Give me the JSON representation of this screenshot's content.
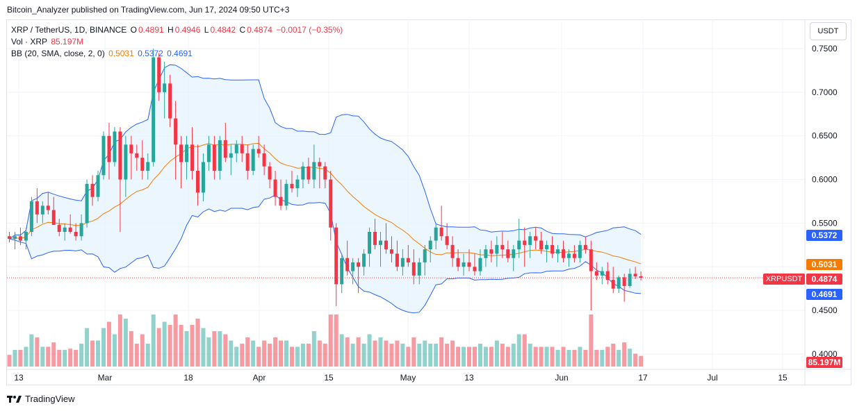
{
  "header": {
    "publisher_line": "Bitcoin_Analyzer published on TradingView.com, Jun 17, 2024 09:50 UTC+3"
  },
  "legend": {
    "symbol": "XRP / TetherUS, 1D, BINANCE",
    "open_label": "O",
    "open": "0.4891",
    "high_label": "H",
    "high": "0.4946",
    "low_label": "L",
    "low": "0.4842",
    "close_label": "C",
    "close": "0.4874",
    "change": "−0.0017 (−0.35%)",
    "vol_label": "Vol · XRP",
    "vol_value": "85.197M",
    "bb_label": "BB (20, SMA, close, 2, 0)",
    "bb_mid": "0.5031",
    "bb_upper": "0.5372",
    "bb_lower": "0.4691"
  },
  "currency_button": "USDT",
  "symbol_tag": "XRPUSDT",
  "price_labels": {
    "upper": "0.5372",
    "mid": "0.5031",
    "last": "0.4874",
    "lower": "0.4691",
    "volume": "85.197M"
  },
  "footer": {
    "brand": "TradingView"
  },
  "colors": {
    "up": "#26a69a",
    "down": "#f23645",
    "band": "#2962ff",
    "basis": "#f57c00",
    "band_fill": "#e3f2fd"
  },
  "chart_data": {
    "type": "candlestick",
    "price_axis": {
      "ticks": [
        "0.7500",
        "0.7000",
        "0.6500",
        "0.6000",
        "0.5500",
        "0.5000",
        "0.4500",
        "0.4000"
      ],
      "range": [
        0.395,
        0.77
      ]
    },
    "time_axis": {
      "labels": [
        "13",
        "Mar",
        "18",
        "Apr",
        "15",
        "May",
        "13",
        "Jun",
        "17",
        "Jul",
        "15"
      ]
    },
    "candles": [
      [
        0.535,
        0.54,
        0.528,
        0.532
      ],
      [
        0.532,
        0.54,
        0.52,
        0.535
      ],
      [
        0.535,
        0.545,
        0.525,
        0.53
      ],
      [
        0.53,
        0.545,
        0.52,
        0.54
      ],
      [
        0.54,
        0.58,
        0.535,
        0.575
      ],
      [
        0.575,
        0.59,
        0.55,
        0.56
      ],
      [
        0.56,
        0.575,
        0.55,
        0.57
      ],
      [
        0.57,
        0.585,
        0.56,
        0.565
      ],
      [
        0.565,
        0.58,
        0.548,
        0.548
      ],
      [
        0.548,
        0.555,
        0.535,
        0.54
      ],
      [
        0.54,
        0.55,
        0.53,
        0.545
      ],
      [
        0.545,
        0.56,
        0.538,
        0.54
      ],
      [
        0.54,
        0.55,
        0.53,
        0.535
      ],
      [
        0.535,
        0.56,
        0.53,
        0.55
      ],
      [
        0.55,
        0.6,
        0.545,
        0.595
      ],
      [
        0.595,
        0.605,
        0.57,
        0.58
      ],
      [
        0.58,
        0.61,
        0.575,
        0.605
      ],
      [
        0.605,
        0.655,
        0.6,
        0.65
      ],
      [
        0.65,
        0.665,
        0.6,
        0.62
      ],
      [
        0.62,
        0.66,
        0.615,
        0.655
      ],
      [
        0.655,
        0.66,
        0.54,
        0.6
      ],
      [
        0.6,
        0.65,
        0.58,
        0.64
      ],
      [
        0.64,
        0.65,
        0.6,
        0.63
      ],
      [
        0.63,
        0.64,
        0.61,
        0.625
      ],
      [
        0.625,
        0.645,
        0.6,
        0.61
      ],
      [
        0.61,
        0.63,
        0.6,
        0.62
      ],
      [
        0.62,
        0.75,
        0.615,
        0.74
      ],
      [
        0.74,
        0.745,
        0.69,
        0.7
      ],
      [
        0.7,
        0.735,
        0.67,
        0.71
      ],
      [
        0.71,
        0.72,
        0.66,
        0.67
      ],
      [
        0.67,
        0.69,
        0.6,
        0.64
      ],
      [
        0.64,
        0.65,
        0.59,
        0.62
      ],
      [
        0.62,
        0.65,
        0.6,
        0.64
      ],
      [
        0.64,
        0.66,
        0.6,
        0.61
      ],
      [
        0.61,
        0.64,
        0.57,
        0.585
      ],
      [
        0.585,
        0.63,
        0.575,
        0.62
      ],
      [
        0.62,
        0.65,
        0.61,
        0.64
      ],
      [
        0.64,
        0.65,
        0.6,
        0.61
      ],
      [
        0.61,
        0.65,
        0.6,
        0.645
      ],
      [
        0.645,
        0.665,
        0.62,
        0.625
      ],
      [
        0.625,
        0.64,
        0.605,
        0.63
      ],
      [
        0.63,
        0.645,
        0.62,
        0.64
      ],
      [
        0.64,
        0.65,
        0.62,
        0.63
      ],
      [
        0.63,
        0.64,
        0.6,
        0.61
      ],
      [
        0.61,
        0.64,
        0.605,
        0.635
      ],
      [
        0.635,
        0.65,
        0.625,
        0.63
      ],
      [
        0.63,
        0.64,
        0.605,
        0.615
      ],
      [
        0.615,
        0.62,
        0.59,
        0.6
      ],
      [
        0.6,
        0.61,
        0.57,
        0.58
      ],
      [
        0.58,
        0.6,
        0.565,
        0.57
      ],
      [
        0.57,
        0.6,
        0.565,
        0.595
      ],
      [
        0.595,
        0.61,
        0.585,
        0.59
      ],
      [
        0.59,
        0.605,
        0.58,
        0.6
      ],
      [
        0.6,
        0.62,
        0.59,
        0.615
      ],
      [
        0.615,
        0.625,
        0.595,
        0.6
      ],
      [
        0.6,
        0.64,
        0.59,
        0.62
      ],
      [
        0.62,
        0.625,
        0.59,
        0.615
      ],
      [
        0.615,
        0.62,
        0.59,
        0.6
      ],
      [
        0.6,
        0.61,
        0.53,
        0.545
      ],
      [
        0.545,
        0.55,
        0.455,
        0.48
      ],
      [
        0.48,
        0.515,
        0.47,
        0.51
      ],
      [
        0.51,
        0.53,
        0.49,
        0.495
      ],
      [
        0.495,
        0.51,
        0.48,
        0.505
      ],
      [
        0.505,
        0.51,
        0.47,
        0.5
      ],
      [
        0.5,
        0.52,
        0.49,
        0.515
      ],
      [
        0.515,
        0.545,
        0.5,
        0.54
      ],
      [
        0.54,
        0.555,
        0.52,
        0.525
      ],
      [
        0.525,
        0.54,
        0.5,
        0.53
      ],
      [
        0.53,
        0.55,
        0.515,
        0.52
      ],
      [
        0.52,
        0.535,
        0.505,
        0.515
      ],
      [
        0.515,
        0.53,
        0.495,
        0.5
      ],
      [
        0.5,
        0.52,
        0.49,
        0.51
      ],
      [
        0.51,
        0.525,
        0.5,
        0.505
      ],
      [
        0.505,
        0.52,
        0.48,
        0.49
      ],
      [
        0.49,
        0.51,
        0.48,
        0.505
      ],
      [
        0.505,
        0.525,
        0.49,
        0.52
      ],
      [
        0.52,
        0.535,
        0.505,
        0.53
      ],
      [
        0.53,
        0.55,
        0.52,
        0.545
      ],
      [
        0.545,
        0.57,
        0.53,
        0.535
      ],
      [
        0.535,
        0.55,
        0.52,
        0.525
      ],
      [
        0.525,
        0.535,
        0.5,
        0.51
      ],
      [
        0.51,
        0.52,
        0.495,
        0.5
      ],
      [
        0.5,
        0.515,
        0.49,
        0.505
      ],
      [
        0.505,
        0.52,
        0.495,
        0.5
      ],
      [
        0.5,
        0.515,
        0.49,
        0.495
      ],
      [
        0.495,
        0.52,
        0.49,
        0.51
      ],
      [
        0.51,
        0.525,
        0.5,
        0.52
      ],
      [
        0.52,
        0.53,
        0.505,
        0.515
      ],
      [
        0.515,
        0.535,
        0.5,
        0.525
      ],
      [
        0.525,
        0.54,
        0.51,
        0.52
      ],
      [
        0.52,
        0.53,
        0.505,
        0.51
      ],
      [
        0.51,
        0.525,
        0.495,
        0.52
      ],
      [
        0.52,
        0.555,
        0.51,
        0.53
      ],
      [
        0.53,
        0.545,
        0.5,
        0.525
      ],
      [
        0.525,
        0.54,
        0.51,
        0.535
      ],
      [
        0.535,
        0.545,
        0.52,
        0.53
      ],
      [
        0.53,
        0.54,
        0.515,
        0.52
      ],
      [
        0.52,
        0.53,
        0.505,
        0.525
      ],
      [
        0.525,
        0.535,
        0.51,
        0.515
      ],
      [
        0.515,
        0.525,
        0.505,
        0.52
      ],
      [
        0.52,
        0.53,
        0.505,
        0.51
      ],
      [
        0.51,
        0.52,
        0.5,
        0.515
      ],
      [
        0.515,
        0.525,
        0.505,
        0.51
      ],
      [
        0.51,
        0.53,
        0.505,
        0.525
      ],
      [
        0.525,
        0.535,
        0.515,
        0.52
      ],
      [
        0.52,
        0.53,
        0.45,
        0.495
      ],
      [
        0.495,
        0.505,
        0.485,
        0.49
      ],
      [
        0.49,
        0.5,
        0.48,
        0.495
      ],
      [
        0.495,
        0.505,
        0.48,
        0.485
      ],
      [
        0.485,
        0.5,
        0.47,
        0.475
      ],
      [
        0.475,
        0.49,
        0.47,
        0.488
      ],
      [
        0.488,
        0.492,
        0.46,
        0.478
      ],
      [
        0.478,
        0.498,
        0.476,
        0.492
      ],
      [
        0.492,
        0.5,
        0.486,
        0.489
      ],
      [
        0.4891,
        0.4946,
        0.4842,
        0.4874
      ]
    ],
    "bollinger": {
      "period": 20,
      "basis": "SMA",
      "source": "close",
      "stddev": 2,
      "offset": 0,
      "last_basis": 0.5031,
      "last_upper": 0.5372,
      "last_lower": 0.4691
    }
  }
}
